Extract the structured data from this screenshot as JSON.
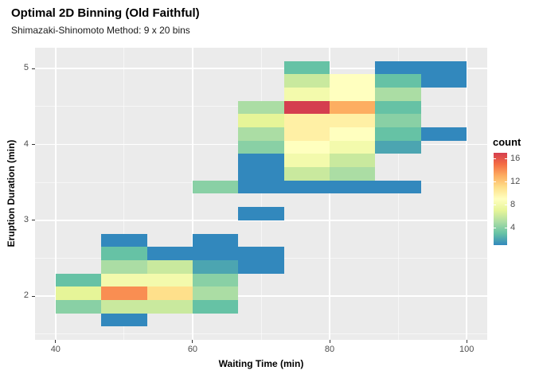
{
  "title": "Optimal 2D Binning (Old Faithful)",
  "subtitle": "Shimazaki-Shinomoto Method: 9 x 20 bins",
  "chart_data": {
    "type": "heatmap",
    "xlabel": "Waiting Time (min)",
    "ylabel": "Eruption Duration (min)",
    "x_domain": [
      37,
      103
    ],
    "y_domain": [
      1.425,
      5.275
    ],
    "x_ticks": [
      40,
      60,
      80,
      100
    ],
    "x_minor_ticks": [
      50,
      70,
      90
    ],
    "y_ticks": [
      2,
      3,
      4,
      5
    ],
    "y_minor_ticks": [
      1.5,
      2.5,
      3.5,
      4.5
    ],
    "bins": {
      "nx": 9,
      "ny": 20,
      "x_origin": 40,
      "x_width": 6.6667,
      "y_origin": 1.6,
      "y_height": 0.175
    },
    "tiles": [
      [
        1,
        0,
        1
      ],
      [
        0,
        1,
        4
      ],
      [
        1,
        1,
        6
      ],
      [
        2,
        1,
        6
      ],
      [
        3,
        1,
        3
      ],
      [
        0,
        2,
        7
      ],
      [
        1,
        2,
        14
      ],
      [
        2,
        2,
        11
      ],
      [
        3,
        2,
        5
      ],
      [
        0,
        3,
        3
      ],
      [
        1,
        3,
        8
      ],
      [
        2,
        3,
        8
      ],
      [
        3,
        3,
        4
      ],
      [
        1,
        4,
        5
      ],
      [
        2,
        4,
        6
      ],
      [
        3,
        4,
        2
      ],
      [
        4,
        4,
        1
      ],
      [
        1,
        5,
        3
      ],
      [
        2,
        5,
        1
      ],
      [
        3,
        5,
        1
      ],
      [
        4,
        5,
        1
      ],
      [
        1,
        6,
        1
      ],
      [
        3,
        6,
        1
      ],
      [
        4,
        8,
        1
      ],
      [
        3,
        10,
        4
      ],
      [
        4,
        10,
        1
      ],
      [
        5,
        10,
        1
      ],
      [
        6,
        10,
        1
      ],
      [
        7,
        10,
        1
      ],
      [
        4,
        11,
        1
      ],
      [
        5,
        11,
        6
      ],
      [
        6,
        11,
        5
      ],
      [
        4,
        12,
        1
      ],
      [
        5,
        12,
        8
      ],
      [
        6,
        12,
        6
      ],
      [
        4,
        13,
        4
      ],
      [
        5,
        13,
        9
      ],
      [
        6,
        13,
        8
      ],
      [
        7,
        13,
        2
      ],
      [
        4,
        14,
        5
      ],
      [
        5,
        14,
        10
      ],
      [
        6,
        14,
        9
      ],
      [
        7,
        14,
        3
      ],
      [
        8,
        14,
        1
      ],
      [
        4,
        15,
        7
      ],
      [
        5,
        15,
        10
      ],
      [
        6,
        15,
        10
      ],
      [
        7,
        15,
        4
      ],
      [
        4,
        16,
        5
      ],
      [
        5,
        16,
        17
      ],
      [
        6,
        16,
        13
      ],
      [
        7,
        16,
        3
      ],
      [
        5,
        17,
        8
      ],
      [
        6,
        17,
        9
      ],
      [
        7,
        17,
        5
      ],
      [
        5,
        18,
        6
      ],
      [
        6,
        18,
        9
      ],
      [
        7,
        18,
        3
      ],
      [
        8,
        18,
        1
      ],
      [
        5,
        19,
        3
      ],
      [
        7,
        19,
        1
      ],
      [
        8,
        19,
        1
      ]
    ],
    "legend": {
      "title": "count",
      "ticks": [
        4,
        8,
        12,
        16
      ],
      "domain": [
        1,
        17
      ]
    },
    "palette": [
      "#3288BD",
      "#66C2A5",
      "#ABDDA4",
      "#E6F598",
      "#FFFFBF",
      "#FEE08B",
      "#FDAE61",
      "#F46D43",
      "#D53E4F"
    ],
    "colors": {
      "panel_bg": "#EBEBEB",
      "grid": "#FFFFFF",
      "tick_label": "#4D4D4D",
      "axis_tick": "#333333"
    }
  }
}
